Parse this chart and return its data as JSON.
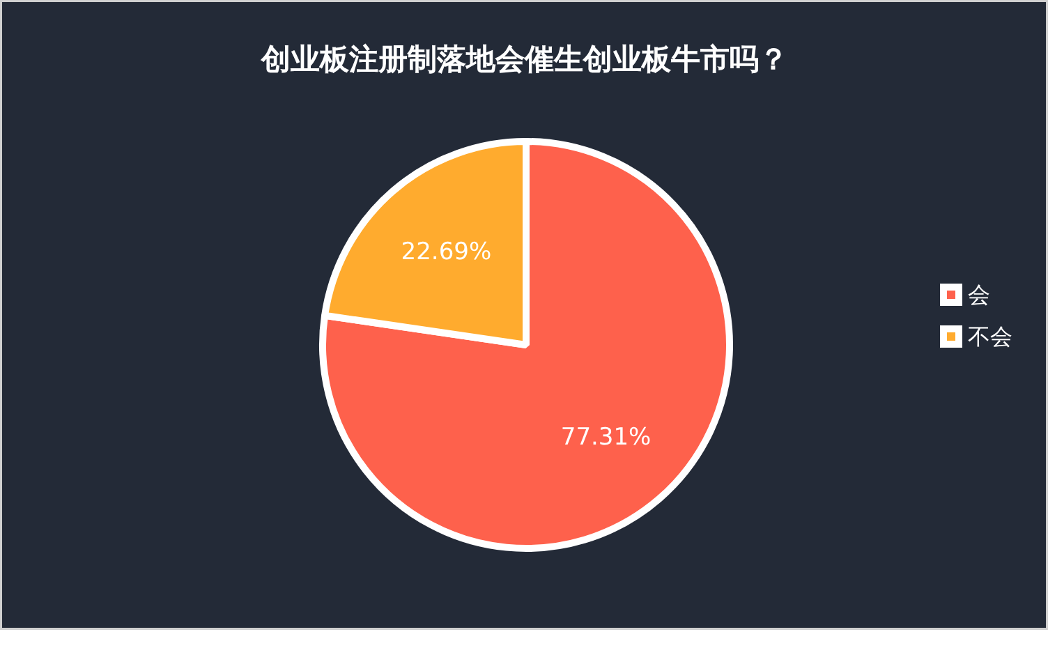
{
  "chart_data": {
    "type": "pie",
    "title": "创业板注册制落地会催生创业板牛市吗？",
    "categories": [
      "会",
      "不会"
    ],
    "values": [
      77.31,
      22.69
    ],
    "colors": [
      "#fe614c",
      "#ffab2e"
    ],
    "value_labels": [
      "77.31%",
      "22.69%"
    ],
    "legend": "right"
  }
}
